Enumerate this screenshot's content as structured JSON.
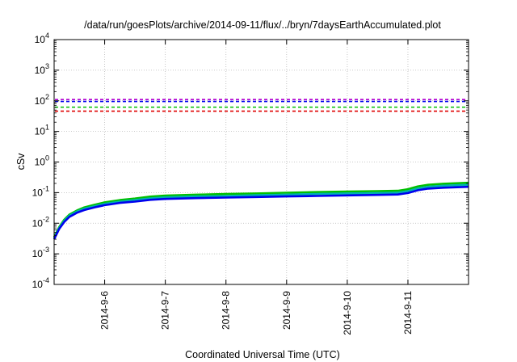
{
  "chart_data": {
    "type": "line",
    "title": "/data/run/goesPlots/archive/2014-09-11/flux/../bryn/7daysEarthAccumulated.plot",
    "xlabel": "Coordinated Universal Time (UTC)",
    "ylabel": "cSv",
    "xscale": "time",
    "yscale": "log",
    "xlim": [
      "2014-09-05T04:00",
      "2014-09-11T23:59"
    ],
    "ylim": [
      0.0001,
      10000
    ],
    "grid": true,
    "x_ticks": [
      "2014-9-6",
      "2014-9-7",
      "2014-9-8",
      "2014-9-9",
      "2014-9-10",
      "2014-9-11"
    ],
    "y_ticks": [
      {
        "value": 0.0001,
        "base": "10",
        "exp": "-4"
      },
      {
        "value": 0.001,
        "base": "10",
        "exp": "-3"
      },
      {
        "value": 0.01,
        "base": "10",
        "exp": "-2"
      },
      {
        "value": 0.1,
        "base": "10",
        "exp": "-1"
      },
      {
        "value": 1,
        "base": "10",
        "exp": "0"
      },
      {
        "value": 10,
        "base": "10",
        "exp": "1"
      },
      {
        "value": 100,
        "base": "10",
        "exp": "2"
      },
      {
        "value": 1000,
        "base": "10",
        "exp": "3"
      },
      {
        "value": 10000,
        "base": "10",
        "exp": "4"
      }
    ],
    "thresholds": [
      {
        "value": 110,
        "color": "#b000d0"
      },
      {
        "value": 95,
        "color": "#0000ee"
      },
      {
        "value": 62,
        "color": "#00c000"
      },
      {
        "value": 46,
        "color": "#e00000"
      }
    ],
    "series": [
      {
        "color": "#00c000",
        "points": [
          [
            "2014-09-05T04:00",
            0.0035
          ],
          [
            "2014-09-05T06:00",
            0.0075
          ],
          [
            "2014-09-05T08:00",
            0.013
          ],
          [
            "2014-09-05T10:00",
            0.019
          ],
          [
            "2014-09-05T13:00",
            0.026
          ],
          [
            "2014-09-05T16:00",
            0.033
          ],
          [
            "2014-09-05T20:00",
            0.04
          ],
          [
            "2014-09-06T00:00",
            0.048
          ],
          [
            "2014-09-06T06:00",
            0.057
          ],
          [
            "2014-09-06T12:00",
            0.064
          ],
          [
            "2014-09-06T18:00",
            0.074
          ],
          [
            "2014-09-07T00:00",
            0.08
          ],
          [
            "2014-09-07T12:00",
            0.086
          ],
          [
            "2014-09-08T00:00",
            0.09
          ],
          [
            "2014-09-08T12:00",
            0.094
          ],
          [
            "2014-09-09T00:00",
            0.099
          ],
          [
            "2014-09-09T12:00",
            0.104
          ],
          [
            "2014-09-10T00:00",
            0.108
          ],
          [
            "2014-09-10T12:00",
            0.112
          ],
          [
            "2014-09-10T20:00",
            0.115
          ],
          [
            "2014-09-11T00:00",
            0.13
          ],
          [
            "2014-09-11T04:00",
            0.16
          ],
          [
            "2014-09-11T08:00",
            0.18
          ],
          [
            "2014-09-11T14:00",
            0.195
          ],
          [
            "2014-09-11T23:59",
            0.21
          ]
        ]
      },
      {
        "color": "#00b0b0",
        "points": [
          [
            "2014-09-05T04:00",
            0.0032
          ],
          [
            "2014-09-05T06:00",
            0.007
          ],
          [
            "2014-09-05T08:00",
            0.012
          ],
          [
            "2014-09-05T10:00",
            0.0175
          ],
          [
            "2014-09-05T13:00",
            0.024
          ],
          [
            "2014-09-05T16:00",
            0.03
          ],
          [
            "2014-09-05T20:00",
            0.036
          ],
          [
            "2014-09-06T00:00",
            0.043
          ],
          [
            "2014-09-06T06:00",
            0.051
          ],
          [
            "2014-09-06T12:00",
            0.057
          ],
          [
            "2014-09-06T18:00",
            0.065
          ],
          [
            "2014-09-07T00:00",
            0.07
          ],
          [
            "2014-09-07T12:00",
            0.075
          ],
          [
            "2014-09-08T00:00",
            0.078
          ],
          [
            "2014-09-08T12:00",
            0.082
          ],
          [
            "2014-09-09T00:00",
            0.086
          ],
          [
            "2014-09-09T12:00",
            0.09
          ],
          [
            "2014-09-10T00:00",
            0.094
          ],
          [
            "2014-09-10T12:00",
            0.097
          ],
          [
            "2014-09-10T20:00",
            0.1
          ],
          [
            "2014-09-11T00:00",
            0.112
          ],
          [
            "2014-09-11T04:00",
            0.138
          ],
          [
            "2014-09-11T08:00",
            0.155
          ],
          [
            "2014-09-11T14:00",
            0.168
          ],
          [
            "2014-09-11T23:59",
            0.18
          ]
        ]
      },
      {
        "color": "#0000ee",
        "points": [
          [
            "2014-09-05T04:00",
            0.003
          ],
          [
            "2014-09-05T06:00",
            0.0065
          ],
          [
            "2014-09-05T08:00",
            0.011
          ],
          [
            "2014-09-05T10:00",
            0.016
          ],
          [
            "2014-09-05T13:00",
            0.022
          ],
          [
            "2014-09-05T16:00",
            0.027
          ],
          [
            "2014-09-05T20:00",
            0.033
          ],
          [
            "2014-09-06T00:00",
            0.039
          ],
          [
            "2014-09-06T06:00",
            0.046
          ],
          [
            "2014-09-06T12:00",
            0.051
          ],
          [
            "2014-09-06T18:00",
            0.058
          ],
          [
            "2014-09-07T00:00",
            0.062
          ],
          [
            "2014-09-07T12:00",
            0.066
          ],
          [
            "2014-09-08T00:00",
            0.069
          ],
          [
            "2014-09-08T12:00",
            0.072
          ],
          [
            "2014-09-09T00:00",
            0.075
          ],
          [
            "2014-09-09T12:00",
            0.078
          ],
          [
            "2014-09-10T00:00",
            0.081
          ],
          [
            "2014-09-10T12:00",
            0.084
          ],
          [
            "2014-09-10T20:00",
            0.087
          ],
          [
            "2014-09-11T00:00",
            0.097
          ],
          [
            "2014-09-11T04:00",
            0.12
          ],
          [
            "2014-09-11T08:00",
            0.135
          ],
          [
            "2014-09-11T14:00",
            0.145
          ],
          [
            "2014-09-11T23:59",
            0.155
          ]
        ]
      }
    ]
  }
}
